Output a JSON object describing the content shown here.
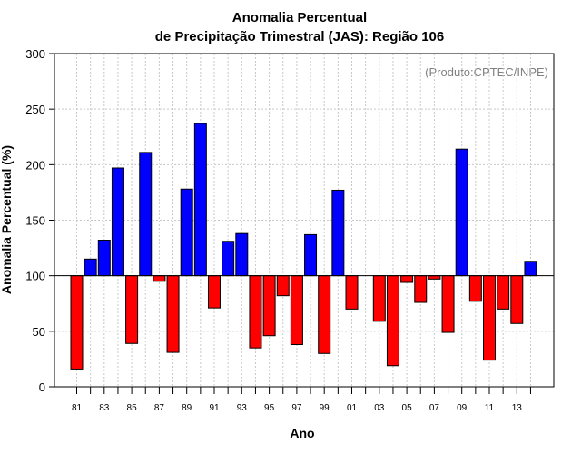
{
  "chart_data": {
    "type": "bar",
    "title": "Anomalia Percentual",
    "subtitle": "de Precipitação Trimestral (JAS): Região 106",
    "xlabel": "Ano",
    "ylabel": "Anomalia Percentual (%)",
    "annotation": "(Produto:CPTEC/INPE)",
    "ylim": [
      0,
      300
    ],
    "yticks": [
      0,
      50,
      100,
      150,
      200,
      250,
      300
    ],
    "baseline": 100,
    "colors": {
      "above": "#0000ff",
      "below": "#ff0000"
    },
    "categories": [
      "81",
      "82",
      "83",
      "84",
      "85",
      "86",
      "87",
      "88",
      "89",
      "90",
      "91",
      "92",
      "93",
      "94",
      "95",
      "96",
      "97",
      "98",
      "99",
      "00",
      "01",
      "02",
      "03",
      "04",
      "05",
      "06",
      "07",
      "08",
      "09",
      "10",
      "11",
      "12",
      "13",
      "14"
    ],
    "xtick_labels": [
      "81",
      "83",
      "85",
      "87",
      "89",
      "91",
      "93",
      "95",
      "97",
      "99",
      "01",
      "03",
      "05",
      "07",
      "09",
      "11",
      "13"
    ],
    "values": [
      16,
      115,
      132,
      197,
      39,
      211,
      95,
      31,
      178,
      237,
      71,
      131,
      138,
      35,
      46,
      82,
      38,
      137,
      30,
      177,
      70,
      100,
      59,
      19,
      94,
      76,
      97,
      49,
      214,
      77,
      24,
      70,
      57,
      113
    ]
  }
}
